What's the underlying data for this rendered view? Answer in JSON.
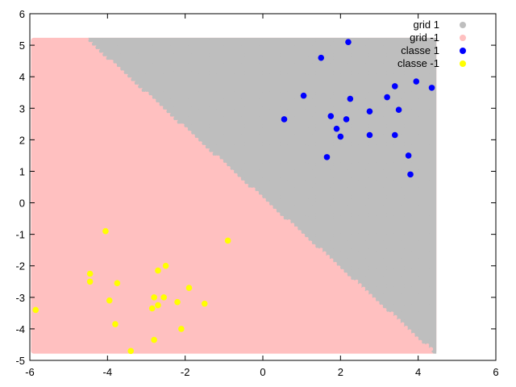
{
  "chart_data": {
    "type": "scatter",
    "title": "",
    "xlabel": "",
    "ylabel": "",
    "xlim": [
      -6,
      6
    ],
    "ylim": [
      -5,
      6
    ],
    "xticks": [
      -6,
      -4,
      -2,
      0,
      2,
      4,
      6
    ],
    "yticks": [
      -5,
      -4,
      -3,
      -2,
      -1,
      0,
      1,
      2,
      3,
      4,
      5,
      6
    ],
    "xtick_labels": [
      "-6",
      "-4",
      "-2",
      "0",
      "2",
      "4",
      "6"
    ],
    "ytick_labels": [
      "-5",
      "-4",
      "-3",
      "-2",
      "-1",
      "0",
      "1",
      "2",
      "3",
      "4",
      "5",
      "6"
    ],
    "grid": false,
    "legend_position": "top-right",
    "decision_region": {
      "x_range": [
        -5.9,
        4.4
      ],
      "y_range": [
        -4.7,
        5.15
      ],
      "boundary_points": [
        [
          -4.5,
          5.15
        ],
        [
          4.4,
          -4.7
        ]
      ]
    },
    "series": [
      {
        "name": "grid 1",
        "color": "#bebebe",
        "kind": "region"
      },
      {
        "name": "grid -1",
        "color": "#ffc0c0",
        "kind": "region"
      },
      {
        "name": "classe 1",
        "color": "#0000ff",
        "kind": "points",
        "points": [
          [
            2.2,
            5.1
          ],
          [
            1.5,
            4.6
          ],
          [
            3.95,
            3.85
          ],
          [
            4.35,
            3.65
          ],
          [
            3.4,
            3.7
          ],
          [
            1.05,
            3.4
          ],
          [
            2.25,
            3.3
          ],
          [
            3.2,
            3.35
          ],
          [
            2.75,
            2.9
          ],
          [
            3.5,
            2.95
          ],
          [
            1.75,
            2.75
          ],
          [
            2.15,
            2.65
          ],
          [
            0.55,
            2.65
          ],
          [
            1.9,
            2.35
          ],
          [
            2.0,
            2.1
          ],
          [
            2.75,
            2.15
          ],
          [
            3.4,
            2.15
          ],
          [
            1.65,
            1.45
          ],
          [
            3.75,
            1.5
          ],
          [
            3.8,
            0.9
          ]
        ]
      },
      {
        "name": "classe -1",
        "color": "#ffff00",
        "kind": "points",
        "points": [
          [
            -4.05,
            -0.9
          ],
          [
            -0.9,
            -1.2
          ],
          [
            -2.5,
            -2.0
          ],
          [
            -4.45,
            -2.25
          ],
          [
            -2.7,
            -2.15
          ],
          [
            -4.45,
            -2.5
          ],
          [
            -3.75,
            -2.55
          ],
          [
            -1.9,
            -2.7
          ],
          [
            -2.8,
            -3.0
          ],
          [
            -2.55,
            -3.0
          ],
          [
            -3.95,
            -3.1
          ],
          [
            -2.2,
            -3.15
          ],
          [
            -1.5,
            -3.2
          ],
          [
            -2.7,
            -3.25
          ],
          [
            -2.85,
            -3.35
          ],
          [
            -5.85,
            -3.4
          ],
          [
            -3.8,
            -3.85
          ],
          [
            -2.1,
            -4.0
          ],
          [
            -2.8,
            -4.35
          ],
          [
            -3.4,
            -4.7
          ]
        ]
      }
    ]
  }
}
